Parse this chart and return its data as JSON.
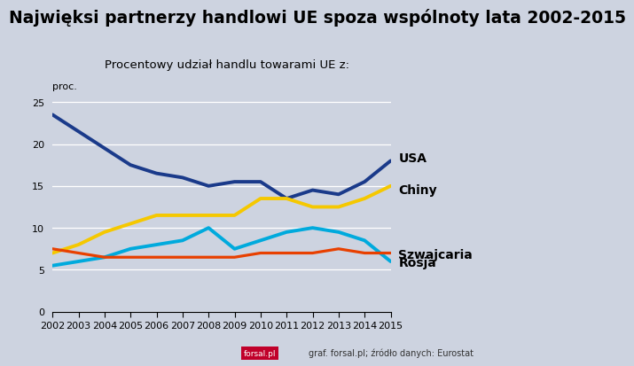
{
  "title": "Najwięksi partnerzy handlowi UE spoza wspólnoty lata 2002-2015",
  "subtitle": "Procentowy udział handlu towarami UE z:",
  "ylabel": "proc.",
  "footer_brand": "forsal.pl",
  "footer_text": "graf. forsal.pl; źródło danych: Eurostat",
  "years": [
    2002,
    2003,
    2004,
    2005,
    2006,
    2007,
    2008,
    2009,
    2010,
    2011,
    2012,
    2013,
    2014,
    2015
  ],
  "usa": [
    23.5,
    21.5,
    19.5,
    17.5,
    16.5,
    16.0,
    15.0,
    15.5,
    15.5,
    13.5,
    14.5,
    14.0,
    15.5,
    18.0
  ],
  "chiny": [
    7.0,
    8.0,
    9.5,
    10.5,
    11.5,
    11.5,
    11.5,
    11.5,
    13.5,
    13.5,
    12.5,
    12.5,
    13.5,
    15.0
  ],
  "szwajcaria": [
    5.5,
    6.0,
    6.5,
    7.5,
    8.0,
    8.5,
    10.0,
    7.5,
    8.5,
    9.5,
    10.0,
    9.5,
    8.5,
    6.0
  ],
  "rosja": [
    7.5,
    7.0,
    6.5,
    6.5,
    6.5,
    6.5,
    6.5,
    6.5,
    7.0,
    7.0,
    7.0,
    7.5,
    7.0,
    7.0
  ],
  "color_usa": "#1a3a8a",
  "color_chiny": "#f5c800",
  "color_szwajcaria": "#00aadd",
  "color_rosja": "#e84000",
  "line_width": 2.3,
  "ylim": [
    0,
    26
  ],
  "yticks": [
    0,
    5,
    10,
    15,
    20,
    25
  ],
  "bg_color": "#cdd3e0",
  "title_fontsize": 13.5,
  "subtitle_fontsize": 9.5,
  "label_fontsize": 10,
  "tick_fontsize": 8,
  "footer_fontsize": 7
}
